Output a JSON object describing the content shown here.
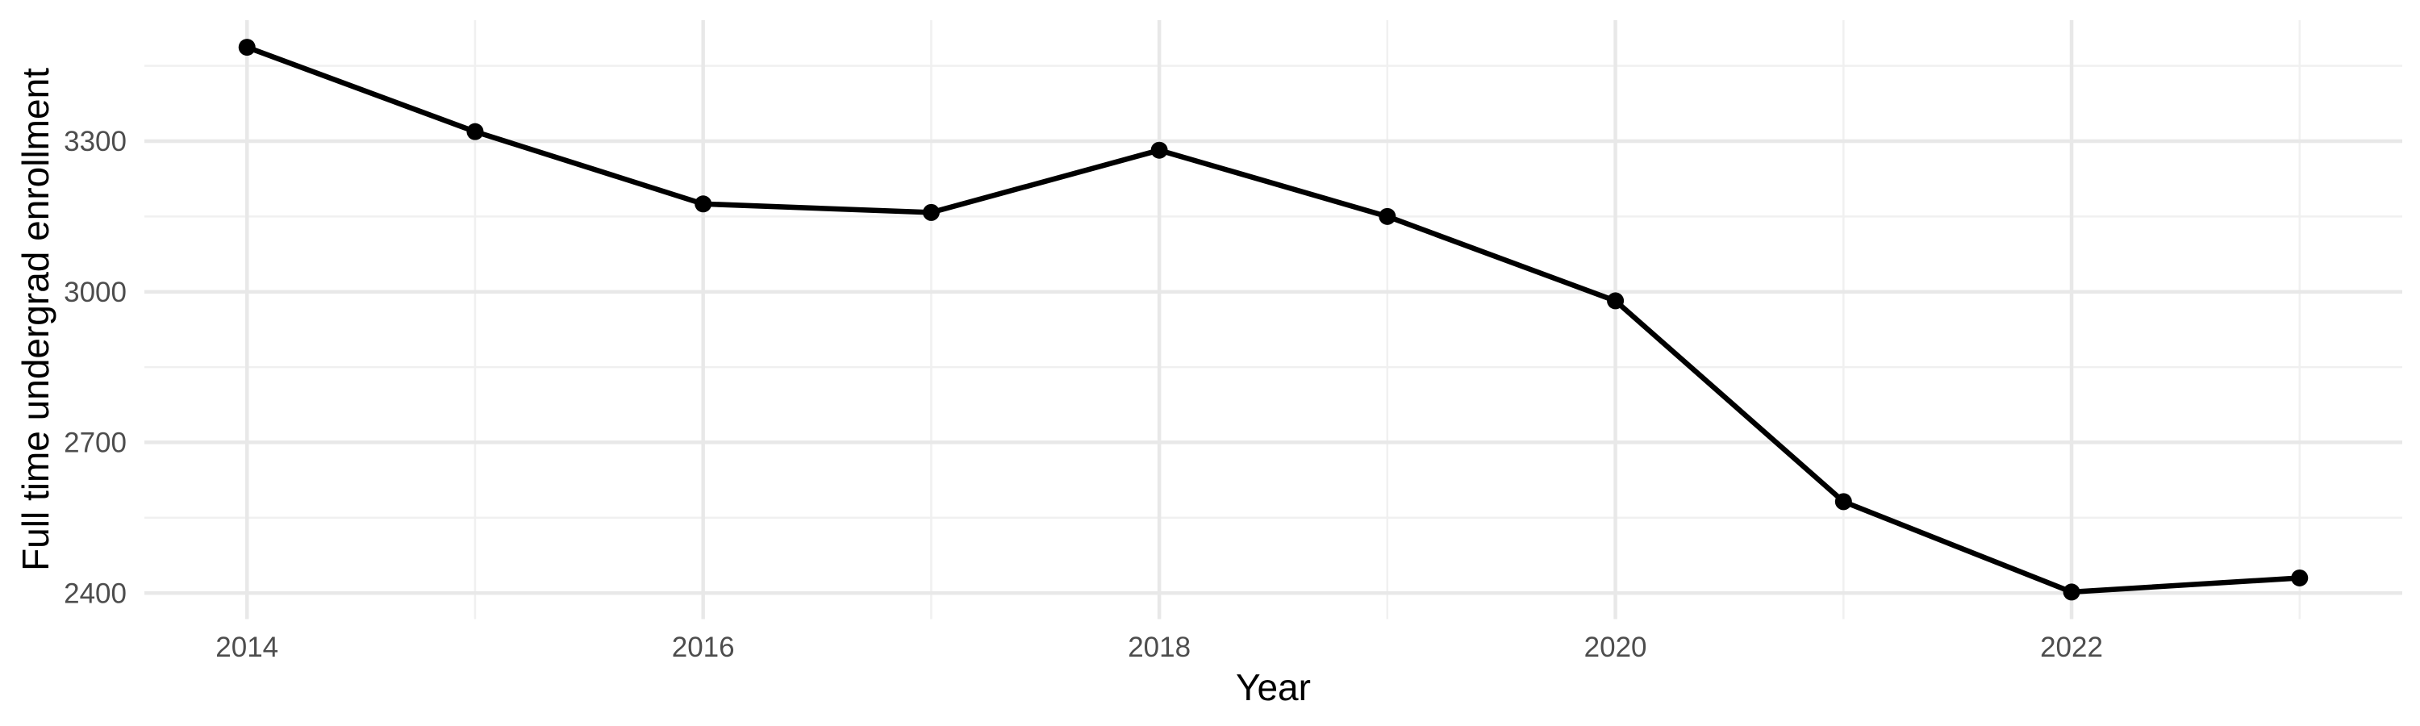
{
  "chart_data": {
    "type": "line",
    "title": "",
    "xlabel": "Year",
    "ylabel": "Full time undergrad enrollment",
    "series": [
      {
        "name": "Full time undergrad enrollment",
        "x": [
          2014,
          2015,
          2016,
          2017,
          2018,
          2019,
          2020,
          2021,
          2022,
          2023
        ],
        "values": [
          3487,
          3319,
          3175,
          3158,
          3282,
          3150,
          2982,
          2582,
          2402,
          2430
        ]
      }
    ],
    "x_major_ticks": [
      2014,
      2016,
      2018,
      2020,
      2022
    ],
    "x_minor_ticks": [
      2015,
      2017,
      2019,
      2021,
      2023
    ],
    "y_major_ticks": [
      2400,
      2700,
      3000,
      3300
    ],
    "y_minor_ticks": [
      2550,
      2850,
      3150,
      3450
    ],
    "xlim": [
      2013.55,
      2023.45
    ],
    "ylim": [
      2348,
      3541
    ],
    "grid": true,
    "legend_position": "none",
    "marker": "point",
    "colors": {
      "line": "#000000",
      "point": "#000000",
      "grid_major": "#E8E8E8",
      "grid_minor": "#F0F0F0",
      "tick_text": "#4D4D4D",
      "axis_title_text": "#000000",
      "background": "#FFFFFF"
    }
  }
}
